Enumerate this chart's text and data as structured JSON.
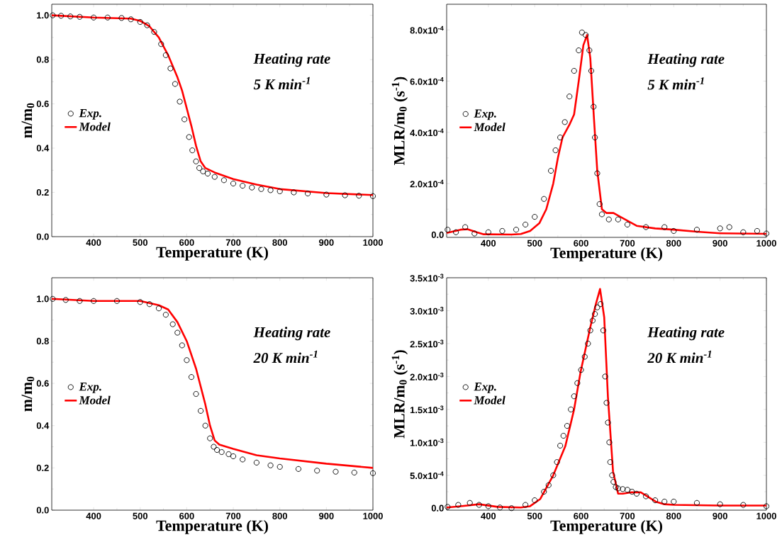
{
  "chart_data": [
    {
      "type": "scatter",
      "xlabel": "Temperature (K)",
      "ylabel": "m/m$_{0}$",
      "annotations": [
        "Heating rate",
        "5 K min$^{-1}$"
      ],
      "xlim": [
        310,
        1000
      ],
      "ylim": [
        0,
        1.05
      ],
      "xticks": [
        400,
        500,
        600,
        700,
        800,
        900,
        1000
      ],
      "yticks": [
        {
          "value": 0,
          "label": "0.0"
        },
        0.2,
        0.4,
        0.6,
        0.8,
        {
          "value": 1,
          "label": "1.0"
        }
      ],
      "legend": "left",
      "series": [
        {
          "name": "Exp.",
          "marker": "circle",
          "color": "#000000",
          "x": [
            312,
            330,
            350,
            370,
            400,
            430,
            460,
            480,
            500,
            515,
            530,
            545,
            555,
            565,
            575,
            585,
            595,
            605,
            612,
            620,
            627,
            635,
            645,
            660,
            680,
            700,
            720,
            740,
            760,
            780,
            800,
            830,
            860,
            900,
            940,
            970,
            1000
          ],
          "values": [
            1.0,
            0.998,
            0.995,
            0.993,
            0.99,
            0.99,
            0.988,
            0.982,
            0.97,
            0.955,
            0.925,
            0.87,
            0.82,
            0.76,
            0.69,
            0.61,
            0.53,
            0.45,
            0.39,
            0.34,
            0.31,
            0.295,
            0.285,
            0.27,
            0.255,
            0.24,
            0.23,
            0.222,
            0.215,
            0.21,
            0.205,
            0.2,
            0.195,
            0.19,
            0.187,
            0.185,
            0.183
          ]
        },
        {
          "name": "Model",
          "type": "line",
          "color": "#ff0000",
          "x": [
            310,
            400,
            480,
            500,
            520,
            540,
            560,
            580,
            590,
            600,
            610,
            620,
            630,
            640,
            660,
            700,
            750,
            800,
            900,
            1000
          ],
          "values": [
            1.0,
            0.99,
            0.985,
            0.975,
            0.95,
            0.9,
            0.82,
            0.72,
            0.66,
            0.58,
            0.5,
            0.41,
            0.34,
            0.31,
            0.29,
            0.26,
            0.235,
            0.215,
            0.197,
            0.188
          ]
        }
      ]
    },
    {
      "type": "scatter",
      "xlabel": "Temperature (K)",
      "ylabel": "MLR/m$_{0}$ (s$^{-1}$)",
      "annotations": [
        "Heating rate",
        "5 K min$^{-1}$"
      ],
      "xlim": [
        310,
        1000
      ],
      "ylim": [
        -1e-05,
        0.0009
      ],
      "xticks": [
        400,
        500,
        600,
        700,
        800,
        900,
        1000
      ],
      "yticks": [
        {
          "value": 0,
          "label": "0.0"
        },
        {
          "value": 0.0002,
          "label": "2.0x10$^{-4}$"
        },
        {
          "value": 0.0004,
          "label": "4.0x10$^{-4}$"
        },
        {
          "value": 0.0006,
          "label": "6.0x10$^{-4}$"
        },
        {
          "value": 0.0008,
          "label": "8.0x10$^{-4}$"
        }
      ],
      "legend": "left",
      "series": [
        {
          "name": "Exp.",
          "marker": "circle",
          "color": "#000000",
          "x": [
            312,
            330,
            350,
            370,
            400,
            430,
            460,
            480,
            500,
            520,
            535,
            545,
            555,
            565,
            575,
            585,
            595,
            602,
            610,
            618,
            622,
            627,
            630,
            635,
            640,
            645,
            660,
            680,
            700,
            740,
            780,
            800,
            850,
            900,
            920,
            950,
            980,
            1000
          ],
          "values": [
            2e-05,
            1e-05,
            3e-05,
            5e-06,
            1e-05,
            1.5e-05,
            2e-05,
            4e-05,
            7e-05,
            0.00014,
            0.00025,
            0.00033,
            0.00038,
            0.00044,
            0.00054,
            0.00064,
            0.00072,
            0.00079,
            0.00078,
            0.00072,
            0.00064,
            0.0005,
            0.00038,
            0.00024,
            0.00012,
            8e-05,
            6e-05,
            6e-05,
            4e-05,
            3e-05,
            3e-05,
            1.5e-05,
            2e-05,
            2.5e-05,
            3e-05,
            1e-05,
            1.5e-05,
            5e-06
          ]
        },
        {
          "name": "Model",
          "type": "line",
          "color": "#ff0000",
          "x": [
            310,
            340,
            355,
            375,
            390,
            450,
            470,
            490,
            510,
            525,
            540,
            550,
            560,
            575,
            585,
            595,
            605,
            613,
            620,
            628,
            635,
            645,
            655,
            670,
            690,
            720,
            760,
            800,
            850,
            900,
            1000
          ],
          "values": [
            7e-06,
            2e-05,
            2.2e-05,
            1e-05,
            2e-06,
            1e-06,
            3e-06,
            1.5e-05,
            4.5e-05,
            0.0001,
            0.0002,
            0.0003,
            0.00038,
            0.00043,
            0.00047,
            0.0006,
            0.00074,
            0.00078,
            0.00069,
            0.00045,
            0.00025,
            0.0001,
            8.5e-05,
            8.5e-05,
            6.5e-05,
            3.5e-05,
            2.5e-05,
            2e-05,
            1.2e-05,
            6e-06,
            4e-06
          ]
        }
      ]
    },
    {
      "type": "scatter",
      "xlabel": "Temperature (K)",
      "ylabel": "m/m$_{0}$",
      "annotations": [
        "Heating rate",
        "20 K min$^{-1}$"
      ],
      "xlim": [
        310,
        1000
      ],
      "ylim": [
        0,
        1.1
      ],
      "xticks": [
        400,
        500,
        600,
        700,
        800,
        900,
        1000
      ],
      "yticks": [
        {
          "value": 0,
          "label": "0.0"
        },
        0.2,
        0.4,
        0.6,
        0.8,
        {
          "value": 1,
          "label": "1.0"
        }
      ],
      "legend": "left",
      "series": [
        {
          "name": "Exp.",
          "marker": "circle",
          "color": "#000000",
          "x": [
            312,
            340,
            370,
            400,
            450,
            500,
            520,
            540,
            555,
            570,
            580,
            590,
            600,
            610,
            620,
            630,
            640,
            650,
            658,
            665,
            675,
            690,
            700,
            720,
            750,
            780,
            800,
            840,
            880,
            920,
            960,
            1000
          ],
          "values": [
            1.0,
            0.995,
            0.99,
            0.99,
            0.99,
            0.985,
            0.975,
            0.955,
            0.925,
            0.88,
            0.84,
            0.78,
            0.71,
            0.63,
            0.55,
            0.47,
            0.4,
            0.34,
            0.3,
            0.285,
            0.275,
            0.265,
            0.255,
            0.24,
            0.225,
            0.212,
            0.205,
            0.195,
            0.187,
            0.182,
            0.178,
            0.175
          ]
        },
        {
          "name": "Model",
          "type": "line",
          "color": "#ff0000",
          "x": [
            310,
            400,
            500,
            540,
            560,
            580,
            600,
            620,
            640,
            650,
            660,
            670,
            700,
            750,
            800,
            900,
            1000
          ],
          "values": [
            1.0,
            0.99,
            0.99,
            0.97,
            0.95,
            0.89,
            0.8,
            0.67,
            0.5,
            0.4,
            0.33,
            0.31,
            0.29,
            0.26,
            0.245,
            0.22,
            0.2
          ]
        }
      ]
    },
    {
      "type": "scatter",
      "xlabel": "Temperature (K)",
      "ylabel": "MLR/m$_{0}$ (s$^{-1}$)",
      "annotations": [
        "Heating rate",
        "20 K min$^{-1}$"
      ],
      "xlim": [
        310,
        1000
      ],
      "ylim": [
        -3e-05,
        0.0035
      ],
      "xticks": [
        400,
        500,
        600,
        700,
        800,
        900,
        1000
      ],
      "yticks": [
        {
          "value": 0,
          "label": "0.0"
        },
        {
          "value": 0.0005,
          "label": "5.0x10$^{-4}$"
        },
        {
          "value": 0.001,
          "label": "1.0x10$^{-3}$"
        },
        {
          "value": 0.0015,
          "label": "1.5x10$^{-3}$"
        },
        {
          "value": 0.002,
          "label": "2.0x10$^{-3}$"
        },
        {
          "value": 0.0025,
          "label": "2.5x10$^{-3}$"
        },
        {
          "value": 0.003,
          "label": "3.0x10$^{-3}$"
        },
        {
          "value": 0.0035,
          "label": "3.5x10$^{-3}$"
        }
      ],
      "legend": "left",
      "series": [
        {
          "name": "Exp.",
          "marker": "circle",
          "color": "#000000",
          "x": [
            312,
            335,
            360,
            380,
            400,
            425,
            450,
            480,
            500,
            520,
            530,
            540,
            548,
            555,
            562,
            570,
            578,
            585,
            592,
            600,
            608,
            615,
            620,
            625,
            630,
            635,
            642,
            648,
            652,
            655,
            658,
            661,
            663,
            667,
            670,
            675,
            680,
            690,
            700,
            710,
            720,
            740,
            760,
            780,
            800,
            850,
            900,
            950,
            1000
          ],
          "values": [
            2e-05,
            5e-05,
            8e-05,
            5e-05,
            3e-05,
            1e-05,
            0.0,
            5e-05,
            0.00012,
            0.00025,
            0.00035,
            0.0005,
            0.0007,
            0.00095,
            0.0011,
            0.00125,
            0.0015,
            0.0017,
            0.0019,
            0.0021,
            0.0023,
            0.0025,
            0.0027,
            0.00285,
            0.00295,
            0.00305,
            0.0031,
            0.0027,
            0.002,
            0.0016,
            0.0013,
            0.001,
            0.0007,
            0.0005,
            0.0004,
            0.00032,
            0.0003,
            0.00029,
            0.00028,
            0.00025,
            0.00022,
            0.00018,
            0.00012,
            0.0001,
            0.0001,
            8e-05,
            6e-05,
            5e-05,
            3e-05
          ]
        },
        {
          "name": "Model",
          "type": "line",
          "color": "#ff0000",
          "x": [
            310,
            340,
            380,
            420,
            470,
            490,
            512,
            540,
            566,
            585,
            599,
            620,
            632,
            641,
            650,
            658,
            669,
            680,
            690,
            707,
            729,
            745,
            761,
            780,
            800,
            900,
            1000
          ],
          "values": [
            1e-05,
            3e-05,
            6e-05,
            2e-05,
            1e-05,
            3e-05,
            0.00014,
            0.0005,
            0.00094,
            0.0015,
            0.00207,
            0.00275,
            0.0031,
            0.00333,
            0.0029,
            0.00169,
            0.00056,
            0.00022,
            0.00022,
            0.00024,
            0.00024,
            0.00017,
            0.0001,
            6e-05,
            5e-05,
            4e-05,
            4e-05
          ]
        }
      ]
    }
  ]
}
